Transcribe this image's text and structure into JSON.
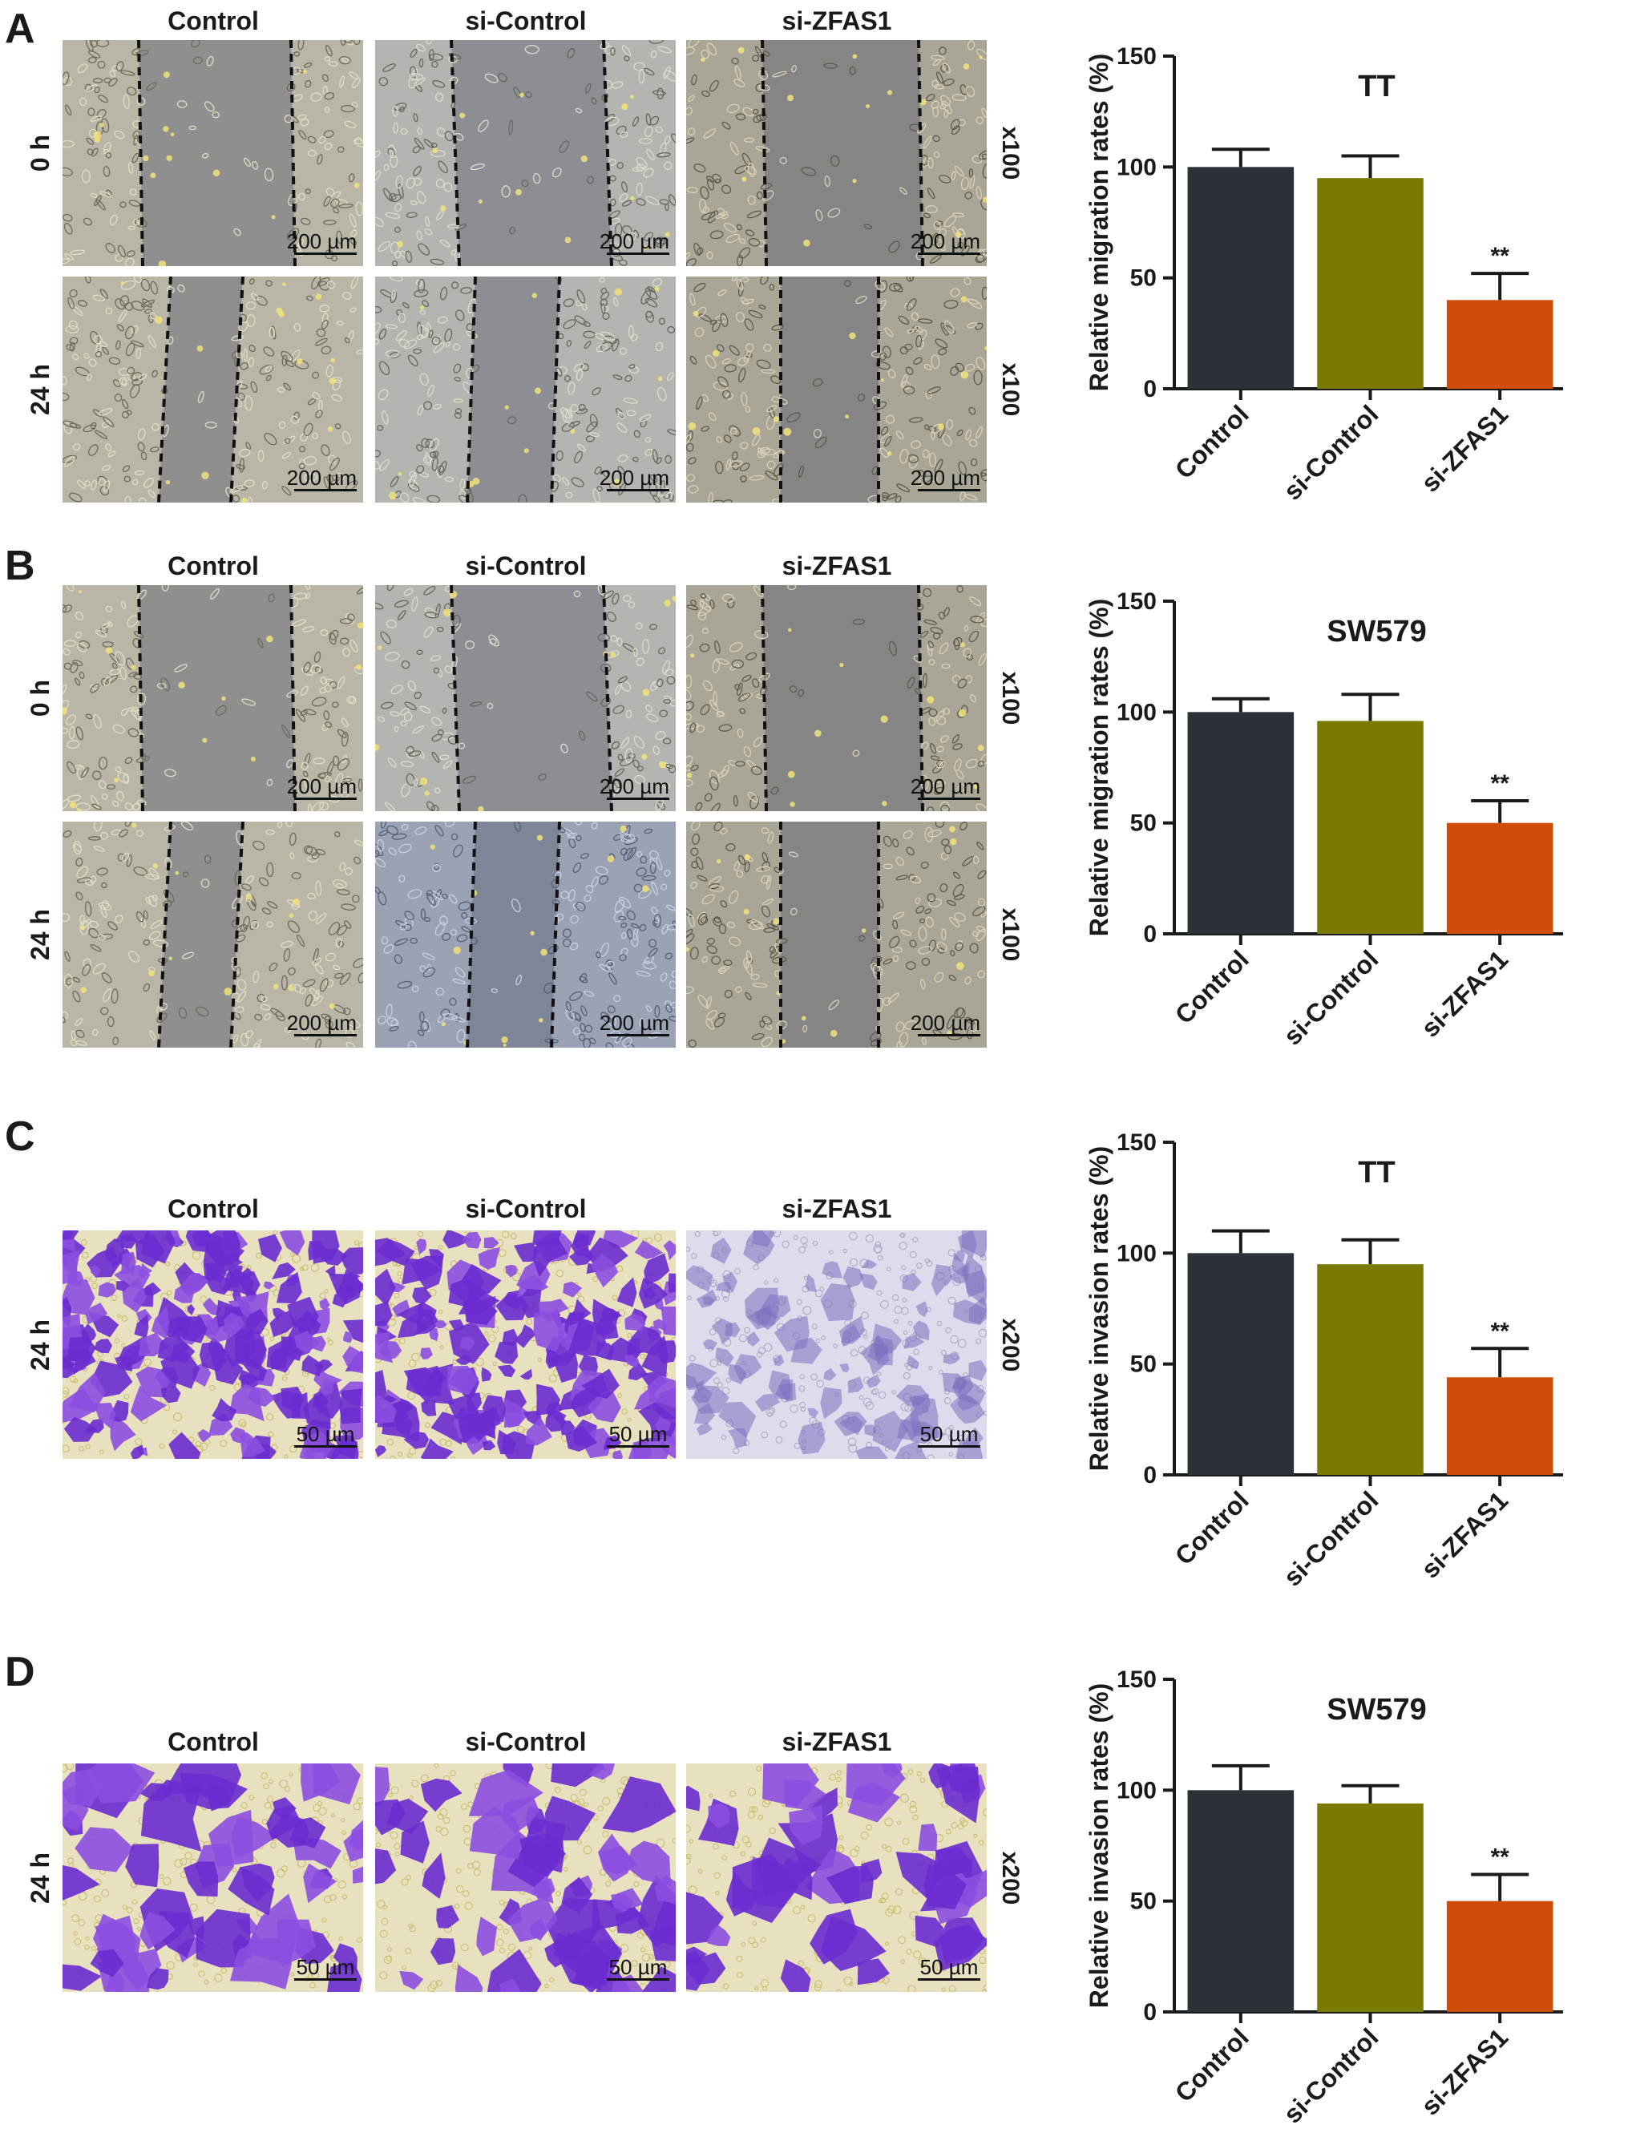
{
  "panels": [
    {
      "letter": "A",
      "column_titles": [
        "Control",
        "si-Control",
        "si-ZFAS1"
      ],
      "row_labels": [
        "0 h",
        "24 h"
      ],
      "magnification": [
        "x100",
        "x100"
      ],
      "scale_bar": "200 µm",
      "assay": "wound",
      "stain": "phase"
    },
    {
      "letter": "B",
      "column_titles": [
        "Control",
        "si-Control",
        "si-ZFAS1"
      ],
      "row_labels": [
        "0 h",
        "24 h"
      ],
      "magnification": [
        "x100",
        "x100"
      ],
      "scale_bar": "200 µm",
      "assay": "wound",
      "stain": "phase"
    },
    {
      "letter": "C",
      "column_titles": [
        "Control",
        "si-Control",
        "si-ZFAS1"
      ],
      "row_labels": [
        "24 h"
      ],
      "magnification": [
        "x200"
      ],
      "scale_bar": "50 µm",
      "assay": "transwell",
      "stain": "crystal-violet"
    },
    {
      "letter": "D",
      "column_titles": [
        "Control",
        "si-Control",
        "si-ZFAS1"
      ],
      "row_labels": [
        "24 h"
      ],
      "magnification": [
        "x200"
      ],
      "scale_bar": "50 µm",
      "assay": "transwell",
      "stain": "crystal-violet"
    }
  ],
  "colors": {
    "control": "#2b3137",
    "si_control": "#7a7a00",
    "si_zfas1": "#d14d07",
    "axis": "#1a1a1a"
  },
  "chart_data": [
    {
      "type": "bar",
      "title": "TT",
      "categories": [
        "Control",
        "si-Control",
        "si-ZFAS1"
      ],
      "values": [
        100,
        95,
        40
      ],
      "error": [
        8,
        10,
        12
      ],
      "significance": [
        "",
        "",
        "**"
      ],
      "xlabel": "",
      "ylabel": "Relative migration rates (%)",
      "ylim": [
        0,
        150
      ],
      "yticks": [
        0,
        50,
        100,
        150
      ],
      "grid": false
    },
    {
      "type": "bar",
      "title": "SW579",
      "categories": [
        "Control",
        "si-Control",
        "si-ZFAS1"
      ],
      "values": [
        100,
        96,
        50
      ],
      "error": [
        6,
        12,
        10
      ],
      "significance": [
        "",
        "",
        "**"
      ],
      "xlabel": "",
      "ylabel": "Relative migration rates (%)",
      "ylim": [
        0,
        150
      ],
      "yticks": [
        0,
        50,
        100,
        150
      ],
      "grid": false
    },
    {
      "type": "bar",
      "title": "TT",
      "categories": [
        "Control",
        "si-Control",
        "si-ZFAS1"
      ],
      "values": [
        100,
        95,
        44
      ],
      "error": [
        10,
        11,
        13
      ],
      "significance": [
        "",
        "",
        "**"
      ],
      "xlabel": "",
      "ylabel": "Relative invasion rates (%)",
      "ylim": [
        0,
        150
      ],
      "yticks": [
        0,
        50,
        100,
        150
      ],
      "grid": false
    },
    {
      "type": "bar",
      "title": "SW579",
      "categories": [
        "Control",
        "si-Control",
        "si-ZFAS1"
      ],
      "values": [
        100,
        94,
        50
      ],
      "error": [
        11,
        8,
        12
      ],
      "significance": [
        "",
        "",
        "**"
      ],
      "xlabel": "",
      "ylabel": "Relative invasion rates (%)",
      "ylim": [
        0,
        150
      ],
      "yticks": [
        0,
        50,
        100,
        150
      ],
      "grid": false
    }
  ]
}
